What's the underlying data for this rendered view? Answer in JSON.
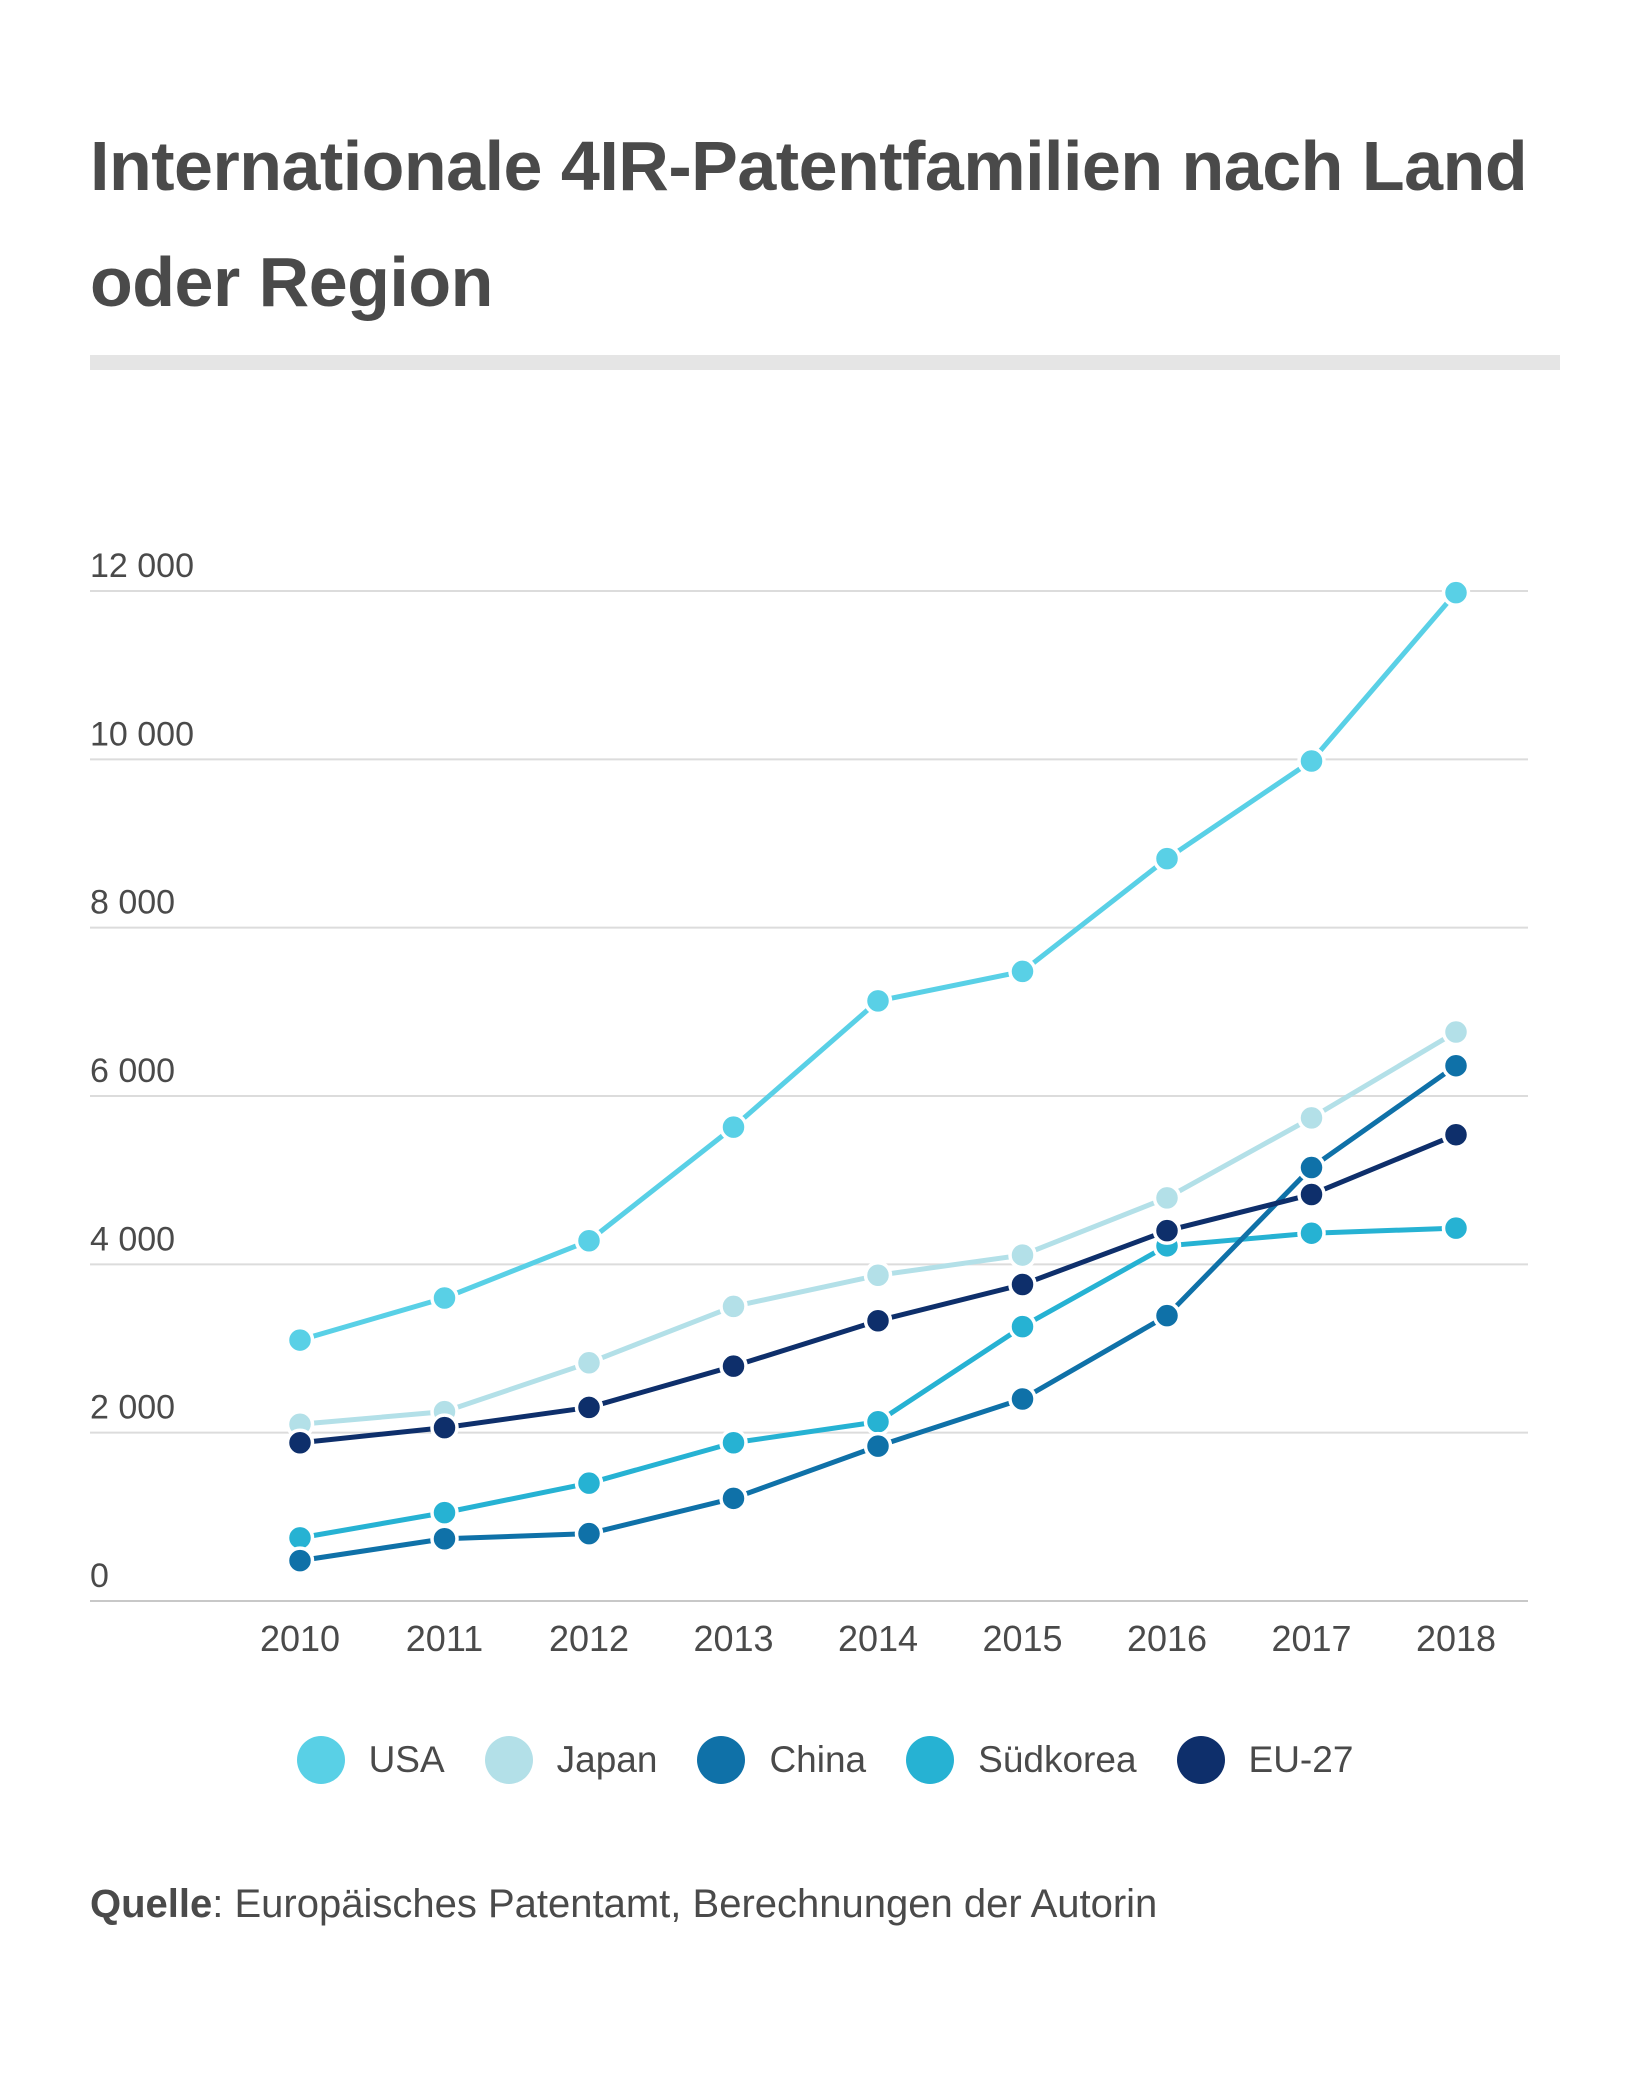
{
  "title": "Internationale 4IR-Patentfamilien nach Land oder Region",
  "source": {
    "label": "Quelle",
    "text": ": Europäisches Patentamt, Berechnungen der Autorin"
  },
  "chart_data": {
    "type": "line",
    "title": "Internationale 4IR-Patentfamilien nach Land oder Region",
    "xlabel": "",
    "ylabel": "",
    "categories": [
      "2010",
      "2011",
      "2012",
      "2013",
      "2014",
      "2015",
      "2016",
      "2017",
      "2018"
    ],
    "ylim": [
      0,
      12000
    ],
    "yticks": [
      0,
      2000,
      4000,
      6000,
      8000,
      10000,
      12000
    ],
    "ytick_labels": [
      "0",
      "2 000",
      "4 000",
      "6 000",
      "8 000",
      "10 000",
      "12 000"
    ],
    "grid": true,
    "legend_position": "bottom",
    "series": [
      {
        "name": "USA",
        "color": "#59d0e6",
        "values": [
          3100,
          3600,
          4280,
          5630,
          7130,
          7480,
          8820,
          9980,
          11980
        ]
      },
      {
        "name": "Japan",
        "color": "#b3e0e8",
        "values": [
          2100,
          2250,
          2830,
          3500,
          3870,
          4110,
          4790,
          5740,
          6760
        ]
      },
      {
        "name": "Südkorea",
        "color": "#26b2d3",
        "values": [
          750,
          1050,
          1400,
          1880,
          2130,
          3260,
          4220,
          4370,
          4430
        ]
      },
      {
        "name": "China",
        "color": "#0f71a8",
        "values": [
          480,
          740,
          800,
          1220,
          1840,
          2400,
          3390,
          5150,
          6360
        ]
      },
      {
        "name": "EU-27",
        "color": "#0e2f6b",
        "values": [
          1880,
          2060,
          2300,
          2790,
          3330,
          3760,
          4400,
          4830,
          5540
        ]
      }
    ],
    "legend_order": [
      "USA",
      "Japan",
      "China",
      "Südkorea",
      "EU-27"
    ]
  }
}
